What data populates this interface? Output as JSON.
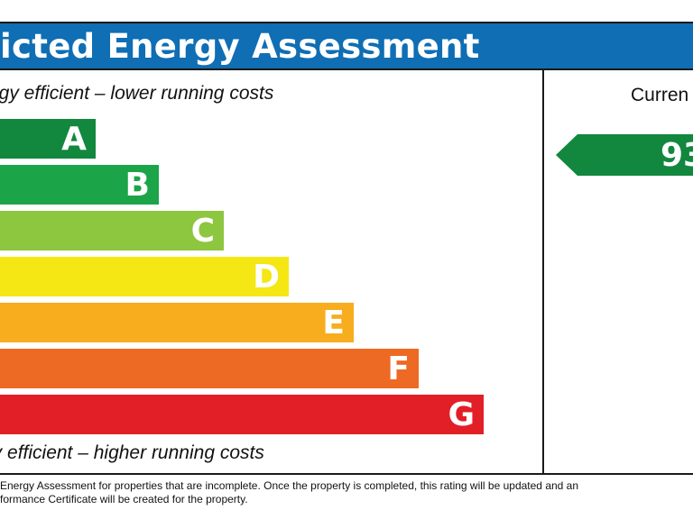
{
  "header": {
    "title": "icted Energy Assessment"
  },
  "captions": {
    "top": "ergy efficient – lower running costs",
    "bottom": "gy efficient – higher running costs"
  },
  "bands": [
    {
      "letter": "A",
      "color": "#12873e"
    },
    {
      "letter": "B",
      "color": "#1ba548"
    },
    {
      "letter": "C",
      "color": "#8dc63f"
    },
    {
      "letter": "D",
      "color": "#f5e713"
    },
    {
      "letter": "E",
      "color": "#f7ad1d"
    },
    {
      "letter": "F",
      "color": "#ed6a24"
    },
    {
      "letter": "G",
      "color": "#e21f26"
    }
  ],
  "current": {
    "label": "Curren",
    "value": "93",
    "color": "#12873e"
  },
  "footnote": {
    "line1": " Energy Assessment for properties that are incomplete. Once the property is completed, this rating will be updated and an",
    "line2": "formance Certificate will be created for the property."
  }
}
